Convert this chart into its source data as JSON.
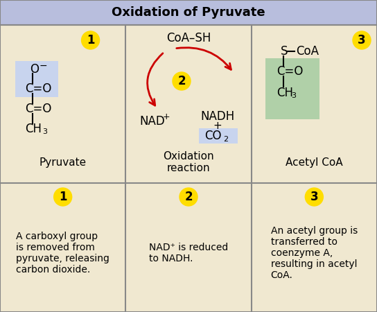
{
  "title": "Oxidation of Pyruvate",
  "title_bg": "#b8bedd",
  "cell_bg": "#f0e8d0",
  "border_color": "#888888",
  "number_bg": "#ffdd00",
  "number_color": "#000000",
  "highlight_blue": "#c8d4ee",
  "highlight_green": "#b0d0a8",
  "bottom_row_texts": [
    "A carboxyl group\nis removed from\npyruvate, releasing\ncarbon dioxide.",
    "NAD⁺ is reduced\nto NADH.",
    "An acetyl group is\ntransferred to\ncoenzyme A,\nresulting in acetyl\nCoA."
  ],
  "numbers": [
    "1",
    "2",
    "3"
  ],
  "arrow_color": "#cc0000"
}
